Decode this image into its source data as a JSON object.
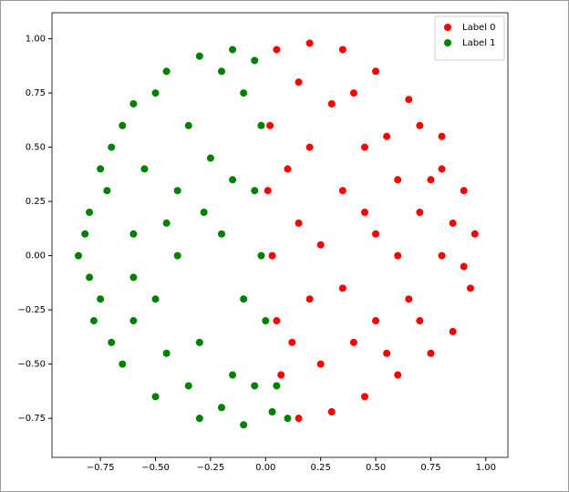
{
  "chart_data": {
    "type": "scatter",
    "xlim": [
      -0.97,
      1.1
    ],
    "ylim": [
      -0.93,
      1.12
    ],
    "xticks": [
      {
        "value": -0.75,
        "label": "−0.75"
      },
      {
        "value": -0.5,
        "label": "−0.50"
      },
      {
        "value": -0.25,
        "label": "−0.25"
      },
      {
        "value": 0,
        "label": "0.00"
      },
      {
        "value": 0.25,
        "label": "0.25"
      },
      {
        "value": 0.5,
        "label": "0.50"
      },
      {
        "value": 0.75,
        "label": "0.75"
      },
      {
        "value": 1,
        "label": "1.00"
      }
    ],
    "yticks": [
      {
        "value": -0.75,
        "label": "−0.75"
      },
      {
        "value": -0.5,
        "label": "−0.50"
      },
      {
        "value": -0.25,
        "label": "−0.25"
      },
      {
        "value": 0,
        "label": "0.00"
      },
      {
        "value": 0.25,
        "label": "0.25"
      },
      {
        "value": 0.5,
        "label": "0.50"
      },
      {
        "value": 0.75,
        "label": "0.75"
      },
      {
        "value": 1,
        "label": "1.00"
      }
    ],
    "legend": "upper right",
    "series": [
      {
        "name": "Label 0",
        "color": "#ff0000",
        "x": [
          0.05,
          0.2,
          0.35,
          0.5,
          0.65,
          0.8,
          0.9,
          0.95,
          0.93,
          0.85,
          0.75,
          0.6,
          0.45,
          0.3,
          0.15,
          0.07,
          0.05,
          0.03,
          0.01,
          0.02,
          0.2,
          0.35,
          0.5,
          0.7,
          0.8,
          0.65,
          0.4,
          0.2,
          0.15,
          0.3,
          0.55,
          0.75,
          0.6,
          0.45,
          0.25,
          0.35,
          0.5,
          0.7,
          0.85,
          0.6,
          0.4,
          0.15,
          0.1,
          0.25,
          0.55,
          0.9,
          0.8,
          0.7,
          0.12,
          0.45
        ],
        "values": [
          0.95,
          0.98,
          0.95,
          0.85,
          0.72,
          0.55,
          0.3,
          0.1,
          -0.15,
          -0.35,
          -0.45,
          -0.55,
          -0.65,
          -0.72,
          -0.75,
          -0.55,
          -0.3,
          0.0,
          0.3,
          0.6,
          0.5,
          0.3,
          0.1,
          0.2,
          0.0,
          -0.2,
          -0.4,
          -0.2,
          0.15,
          0.7,
          0.55,
          0.35,
          0.35,
          0.5,
          0.05,
          -0.15,
          -0.3,
          -0.3,
          0.15,
          0.0,
          0.75,
          0.8,
          0.4,
          -0.5,
          -0.45,
          -0.05,
          0.4,
          0.6,
          -0.4,
          0.2
        ]
      },
      {
        "name": "Label 1",
        "color": "#008000",
        "x": [
          -0.85,
          -0.8,
          -0.78,
          -0.7,
          -0.6,
          -0.45,
          -0.3,
          -0.15,
          -0.05,
          -0.02,
          -0.05,
          -0.02,
          0.0,
          0.05,
          0.1,
          -0.1,
          -0.3,
          -0.5,
          -0.65,
          -0.75,
          -0.82,
          -0.6,
          -0.5,
          -0.4,
          -0.3,
          -0.2,
          -0.15,
          -0.35,
          -0.55,
          -0.7,
          -0.45,
          -0.25,
          -0.1,
          -0.6,
          -0.72,
          -0.4,
          -0.1,
          -0.2,
          -0.35,
          -0.65,
          -0.8,
          -0.5,
          -0.2,
          -0.05,
          0.03,
          -0.28,
          -0.15,
          -0.45,
          -0.6,
          -0.75
        ],
        "values": [
          0.0,
          0.2,
          -0.3,
          0.5,
          0.7,
          0.85,
          0.92,
          0.95,
          0.9,
          0.6,
          0.3,
          0.0,
          -0.3,
          -0.6,
          -0.75,
          -0.78,
          -0.75,
          -0.65,
          -0.5,
          -0.2,
          0.1,
          0.1,
          -0.2,
          0.3,
          -0.4,
          0.1,
          -0.55,
          0.6,
          0.4,
          -0.4,
          -0.45,
          0.45,
          0.75,
          -0.1,
          0.3,
          0.0,
          -0.2,
          -0.7,
          -0.6,
          0.6,
          -0.1,
          0.75,
          0.85,
          -0.6,
          -0.72,
          0.2,
          0.35,
          0.15,
          -0.3,
          0.4
        ]
      }
    ]
  }
}
